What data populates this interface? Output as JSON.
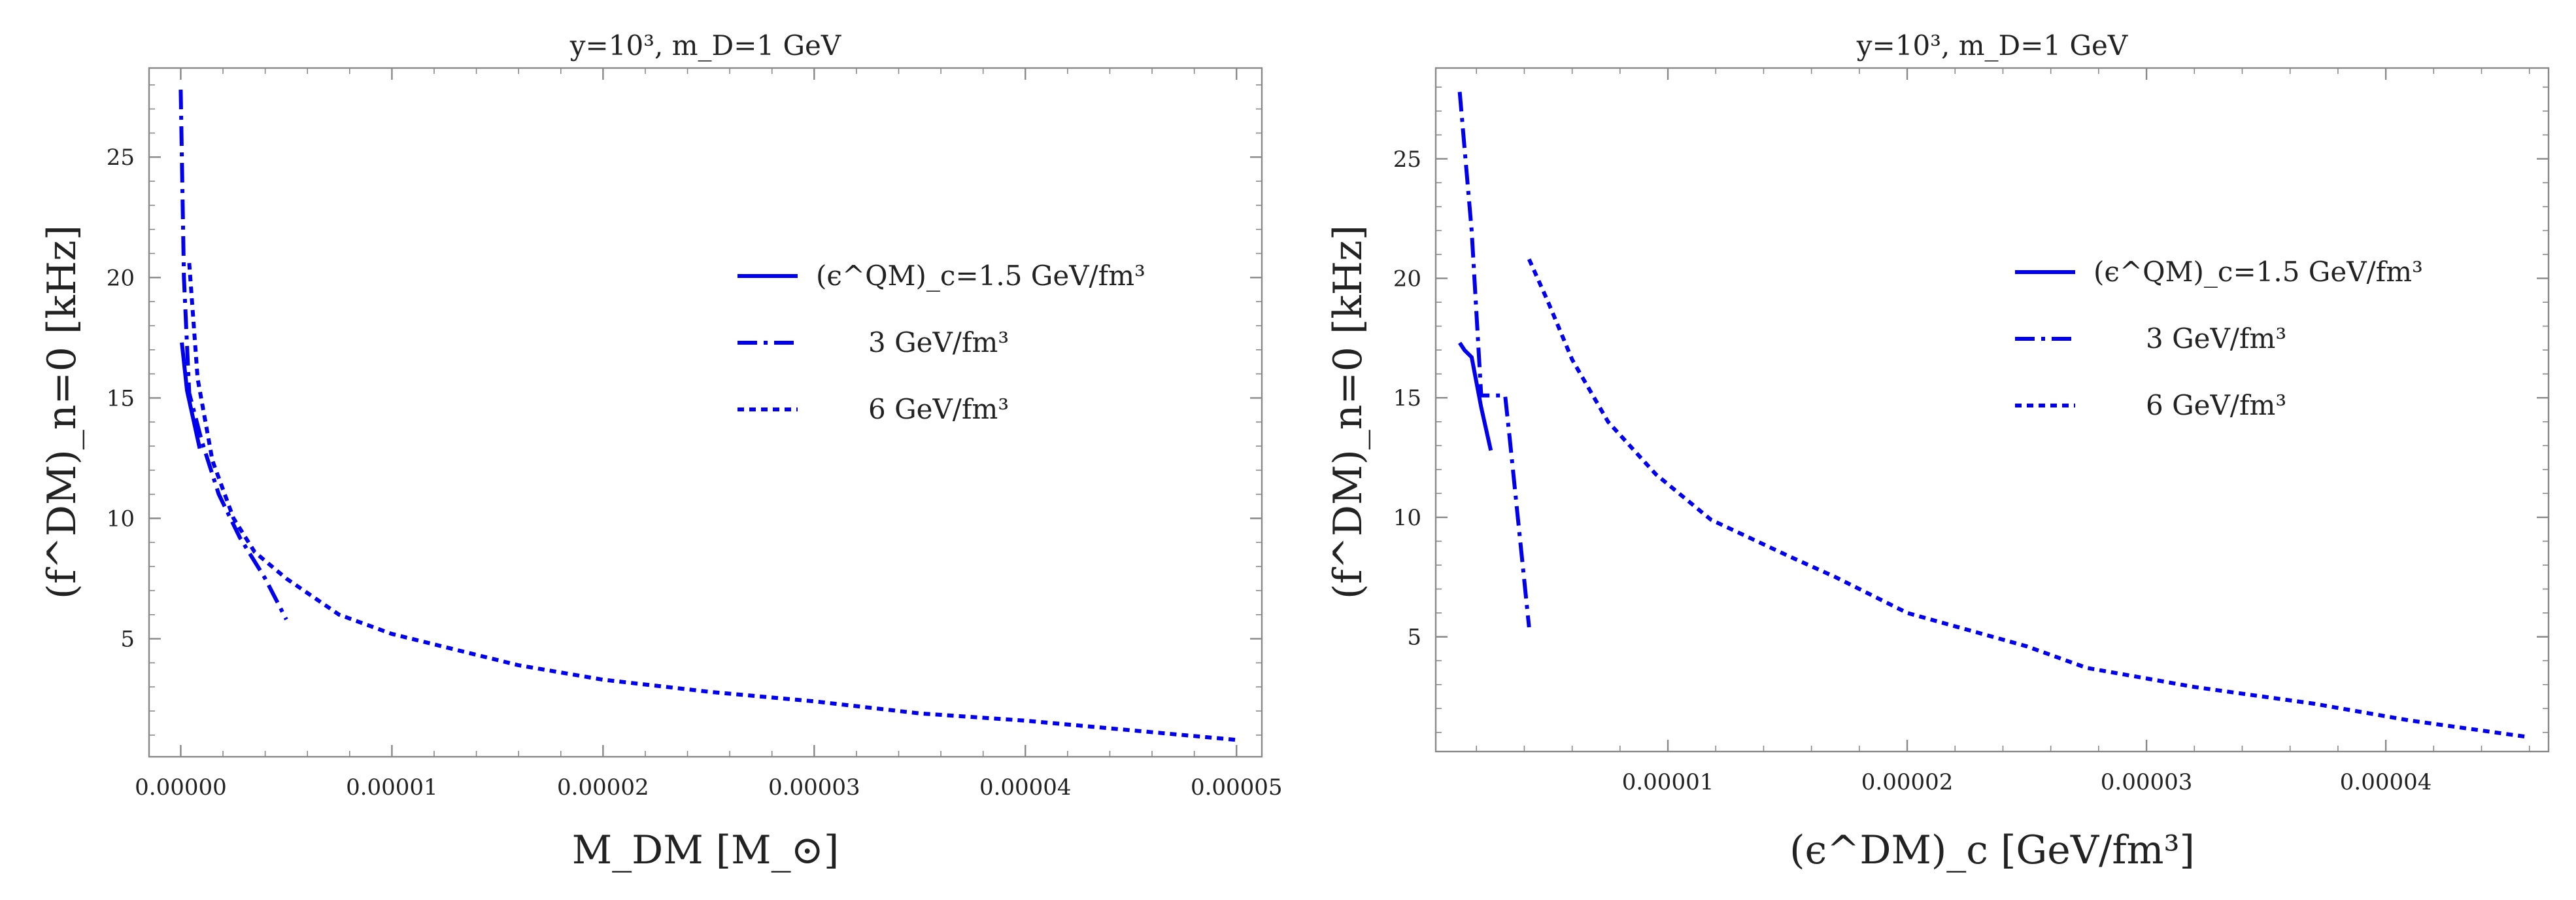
{
  "chart_data": [
    {
      "type": "line",
      "title": "y=10³, m_D=1 GeV",
      "xlabel": "M_DM [M_⊙]",
      "ylabel": "(f^DM)_n=0 [kHz]",
      "xlim": [
        -1.5e-06,
        5.12e-05
      ],
      "ylim": [
        0.1,
        28.7
      ],
      "x_ticks": [
        {
          "value": 0.0,
          "label": "0.00000"
        },
        {
          "value": 1e-05,
          "label": "0.00001"
        },
        {
          "value": 2e-05,
          "label": "0.00002"
        },
        {
          "value": 3e-05,
          "label": "0.00003"
        },
        {
          "value": 4e-05,
          "label": "0.00004"
        },
        {
          "value": 5e-05,
          "label": "0.00005"
        }
      ],
      "y_ticks": [
        {
          "value": 5,
          "label": "5"
        },
        {
          "value": 10,
          "label": "10"
        },
        {
          "value": 15,
          "label": "15"
        },
        {
          "value": 20,
          "label": "20"
        },
        {
          "value": 25,
          "label": "25"
        }
      ],
      "grid": false,
      "legend_position": "right",
      "series": [
        {
          "name": "(ϵ^QM)_c=1.5 GeV/fm³",
          "style": "solid",
          "color": "#0000ee",
          "x": [
            5e-08,
            3e-07,
            6e-07,
            9e-07
          ],
          "y": [
            17.3,
            15.3,
            14.1,
            12.9
          ]
        },
        {
          "name": "3 GeV/fm³",
          "style": "dashdot",
          "color": "#0000ee",
          "x": [
            0.0,
            1.5e-07,
            4e-07,
            1e-06,
            1.8e-06,
            2.8e-06,
            4e-06,
            5e-06
          ],
          "y": [
            27.8,
            20.0,
            15.2,
            13.2,
            11.0,
            9.2,
            7.5,
            5.8
          ]
        },
        {
          "name": "6 GeV/fm³",
          "style": "dotted",
          "color": "#0000ee",
          "x": [
            4e-07,
            8e-07,
            1.5e-06,
            2.5e-06,
            3.5e-06,
            5e-06,
            7.5e-06,
            1e-05,
            1.6e-05,
            2e-05,
            2.5e-05,
            3e-05,
            3.5e-05,
            4e-05,
            4.5e-05,
            5e-05
          ],
          "y": [
            20.6,
            15.8,
            12.4,
            10.0,
            8.6,
            7.5,
            6.0,
            5.2,
            3.9,
            3.3,
            2.8,
            2.4,
            1.9,
            1.6,
            1.2,
            0.8
          ]
        }
      ]
    },
    {
      "type": "line",
      "title": "y=10³, m_D=1 GeV",
      "xlabel": "(ϵ^DM)_c [GeV/fm³]",
      "ylabel": "(f^DM)_n=0 [kHz]",
      "xlim": [
        3e-07,
        4.68e-05
      ],
      "ylim": [
        0.2,
        28.8
      ],
      "x_ticks": [
        {
          "value": 1e-05,
          "label": "0.00001"
        },
        {
          "value": 2e-05,
          "label": "0.00002"
        },
        {
          "value": 3e-05,
          "label": "0.00003"
        },
        {
          "value": 4e-05,
          "label": "0.00004"
        }
      ],
      "y_ticks": [
        {
          "value": 5,
          "label": "5"
        },
        {
          "value": 10,
          "label": "10"
        },
        {
          "value": 15,
          "label": "15"
        },
        {
          "value": 20,
          "label": "20"
        },
        {
          "value": 25,
          "label": "25"
        }
      ],
      "grid": false,
      "legend_position": "right",
      "series": [
        {
          "name": "(ϵ^QM)_c=1.5 GeV/fm³",
          "style": "solid",
          "color": "#0000ee",
          "x": [
            1.3e-06,
            1.5e-06,
            1.8e-06,
            2.2e-06,
            2.6e-06
          ],
          "y": [
            17.3,
            17.0,
            16.7,
            14.6,
            12.8
          ]
        },
        {
          "name": "3 GeV/fm³",
          "style": "dashdot",
          "color": "#0000ee",
          "x": [
            1.3e-06,
            1.8e-06,
            2.2e-06,
            2.5e-06,
            3.2e-06,
            3.4e-06,
            4.2e-06
          ],
          "y": [
            27.8,
            22.0,
            15.1,
            15.1,
            15.1,
            13.2,
            5.4
          ]
        },
        {
          "name": "6 GeV/fm³",
          "style": "dotted",
          "color": "#0000ee",
          "x": [
            4.2e-06,
            5e-06,
            6e-06,
            7.5e-06,
            9.5e-06,
            1.18e-05,
            1.5e-05,
            1.7e-05,
            2e-05,
            2.5e-05,
            2.75e-05,
            3.2e-05,
            3.7e-05,
            4.1e-05,
            4.6e-05
          ],
          "y": [
            20.8,
            19.0,
            16.6,
            14.0,
            11.8,
            9.9,
            8.4,
            7.5,
            6.0,
            4.6,
            3.7,
            2.9,
            2.2,
            1.5,
            0.8
          ]
        }
      ]
    }
  ]
}
